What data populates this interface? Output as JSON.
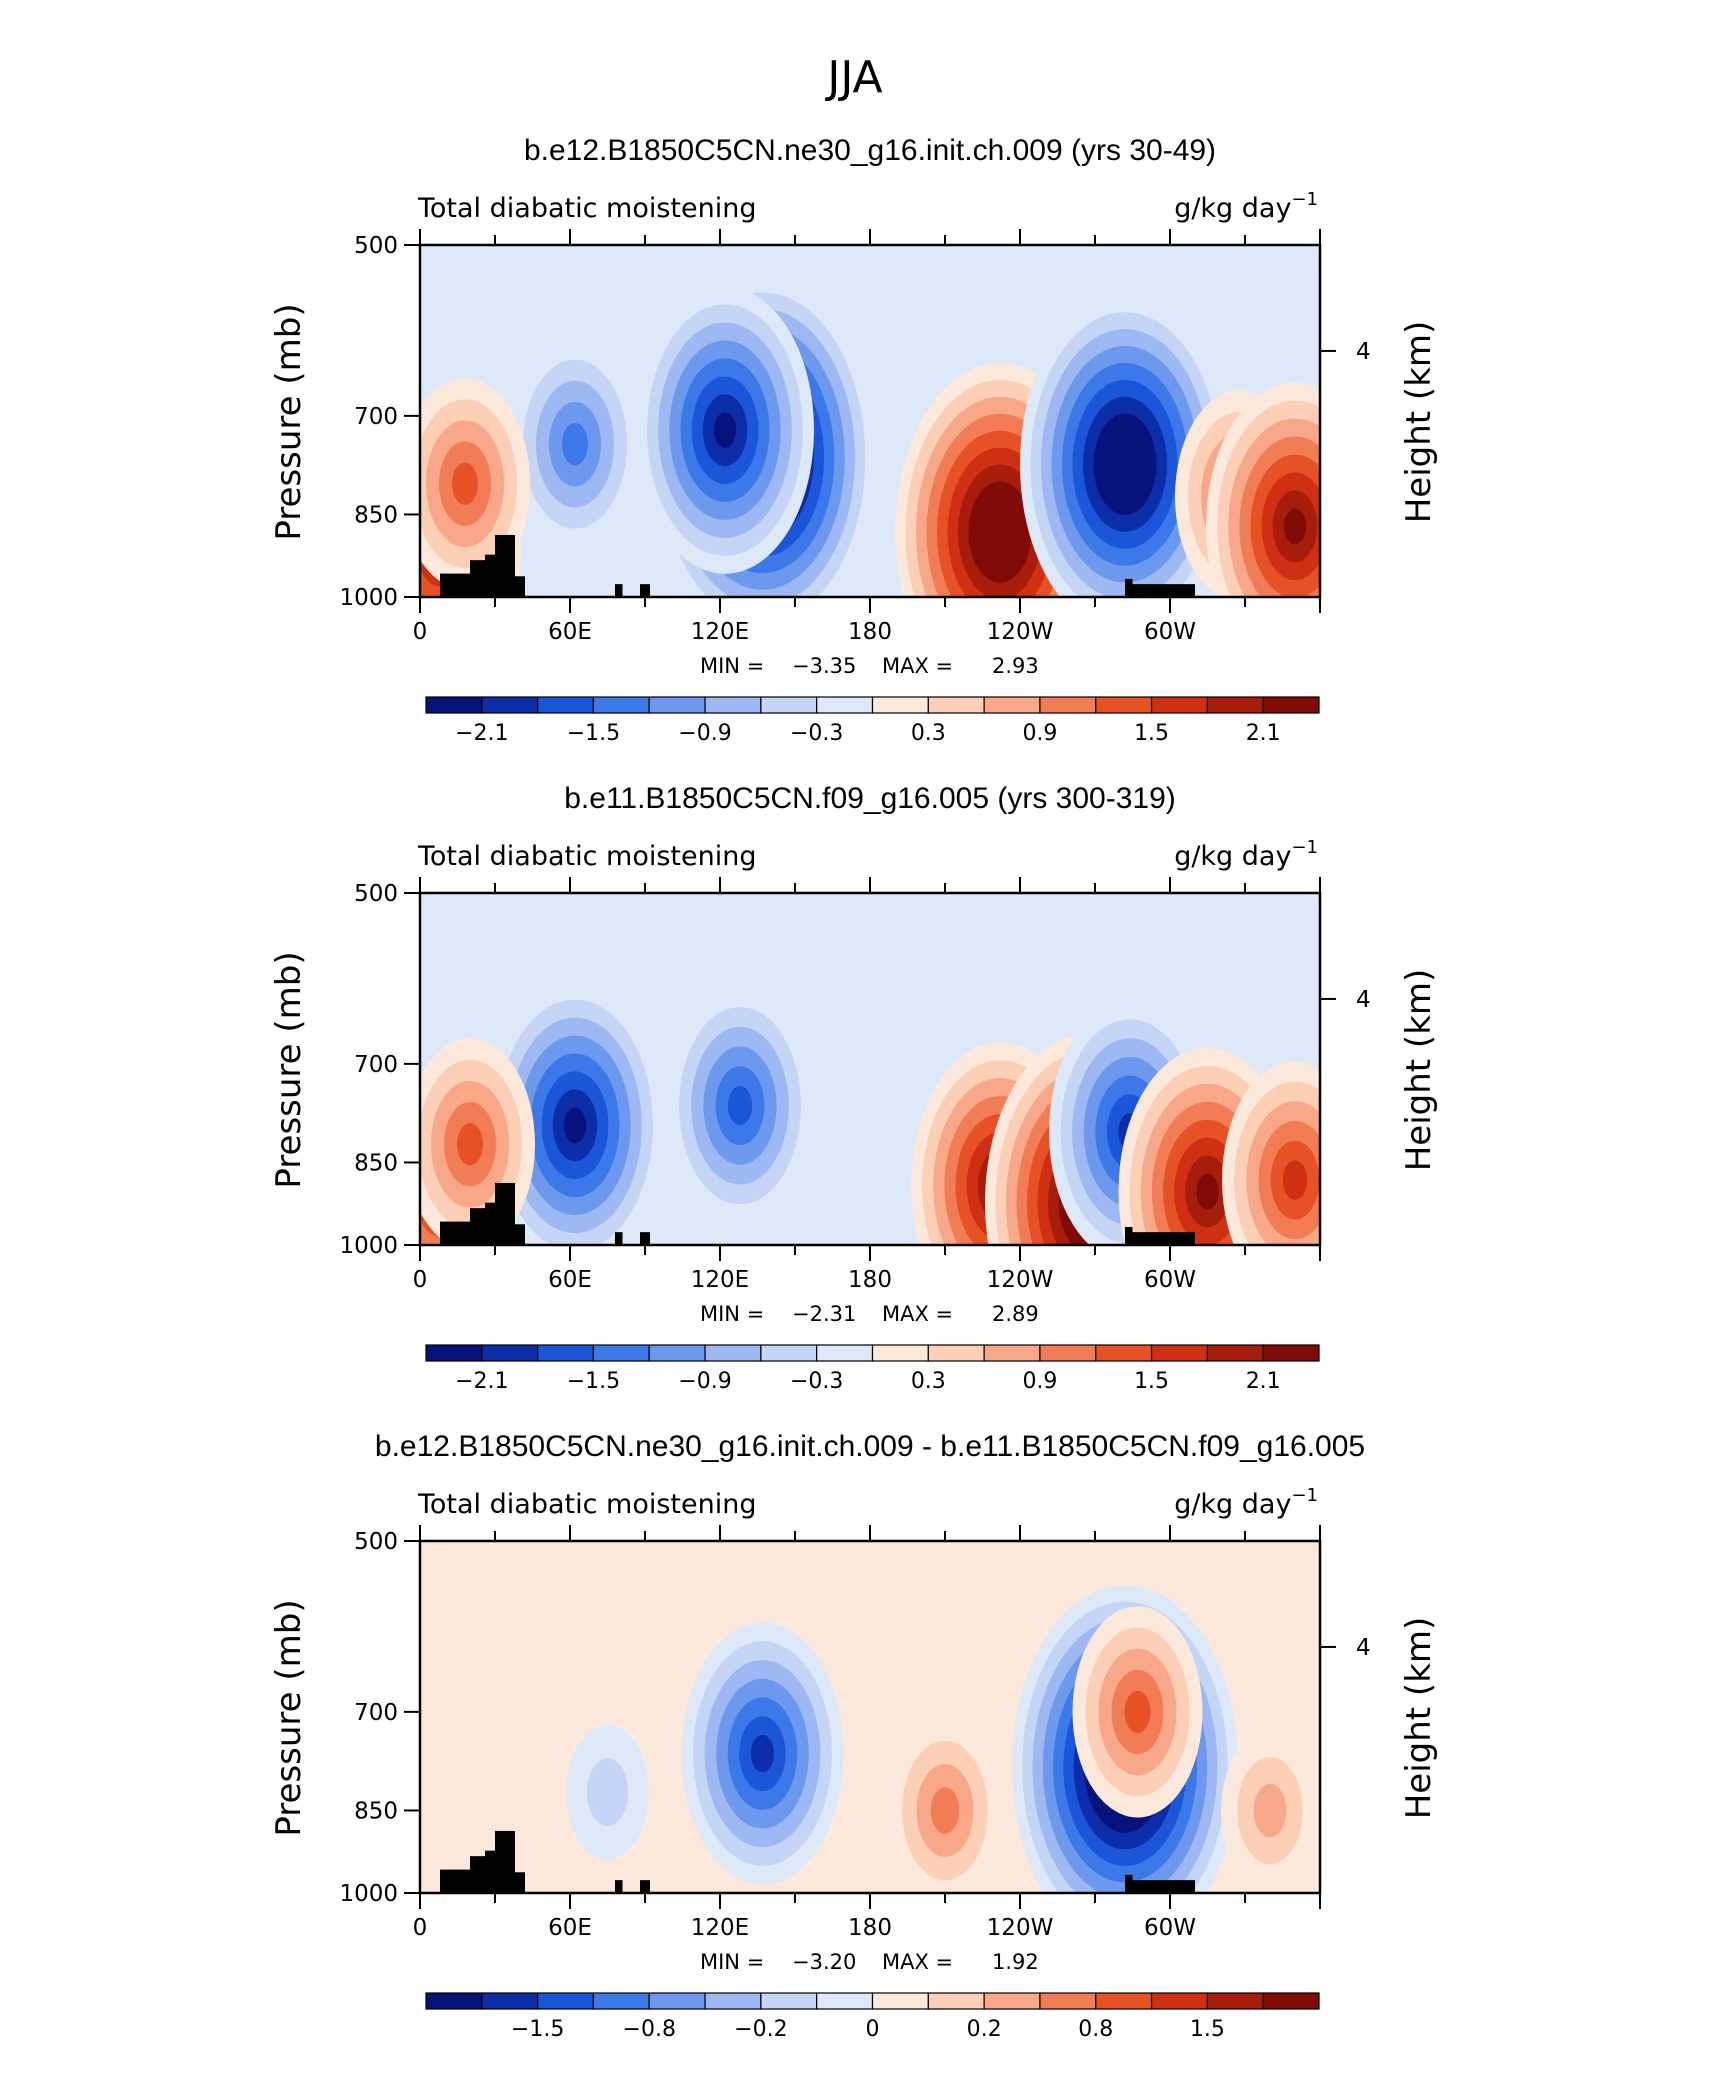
{
  "figure": {
    "title": "JJA"
  },
  "chart_data": [
    {
      "type": "heatmap",
      "title": "b.e12.B1850C5CN.ne30_g16.init.ch.009 (yrs 30-49)",
      "left_string": "Total diabatic moistening",
      "right_string_base": "g/kg day",
      "right_string_exp": "−1",
      "ylabel": "Pressure (mb)",
      "y2label": "Height (km)",
      "y_ticks": [
        "500",
        "700",
        "850",
        "1000"
      ],
      "y2_ticks": [
        "4"
      ],
      "x_ticks": [
        "0",
        "60E",
        "120E",
        "180",
        "120W",
        "60W"
      ],
      "ylim": [
        1000,
        500
      ],
      "xlim": [
        0,
        360
      ],
      "min_max": {
        "min_label": "MIN =",
        "min": "−3.35",
        "max_label": "MAX =",
        "max": "2.93"
      },
      "colorbar_labels": [
        "−2.1",
        "−1.5",
        "−0.9",
        "−0.3",
        "0.3",
        "0.9",
        "1.5",
        "2.1"
      ],
      "colorbar_label_slots": [
        1,
        3,
        5,
        7,
        9,
        11,
        13,
        15
      ],
      "features": [
        {
          "lon": 137,
          "p": 760,
          "value": -3.35
        },
        {
          "lon": 122,
          "p": 720,
          "value": -2.4
        },
        {
          "lon": 62,
          "p": 740,
          "value": -1.4
        },
        {
          "lon": 8,
          "p": 910,
          "value": 2.0
        },
        {
          "lon": 18,
          "p": 800,
          "value": 1.5
        },
        {
          "lon": 232,
          "p": 880,
          "value": 2.93
        },
        {
          "lon": 282,
          "p": 770,
          "value": -3.0
        },
        {
          "lon": 328,
          "p": 820,
          "value": 1.6
        },
        {
          "lon": 350,
          "p": 870,
          "value": 2.3
        }
      ]
    },
    {
      "type": "heatmap",
      "title": "b.e11.B1850C5CN.f09_g16.005 (yrs 300-319)",
      "left_string": "Total diabatic moistening",
      "right_string_base": "g/kg day",
      "right_string_exp": "−1",
      "ylabel": "Pressure (mb)",
      "y2label": "Height (km)",
      "y_ticks": [
        "500",
        "700",
        "850",
        "1000"
      ],
      "y2_ticks": [
        "4"
      ],
      "x_ticks": [
        "0",
        "60E",
        "120E",
        "180",
        "120W",
        "60W"
      ],
      "ylim": [
        1000,
        500
      ],
      "xlim": [
        0,
        360
      ],
      "min_max": {
        "min_label": "MIN =",
        "min": "−2.31",
        "max_label": "MAX =",
        "max": "2.89"
      },
      "colorbar_labels": [
        "−2.1",
        "−1.5",
        "−0.9",
        "−0.3",
        "0.3",
        "0.9",
        "1.5",
        "2.1"
      ],
      "colorbar_label_slots": [
        1,
        3,
        5,
        7,
        9,
        11,
        13,
        15
      ],
      "features": [
        {
          "lon": 62,
          "p": 790,
          "value": -2.31
        },
        {
          "lon": 128,
          "p": 760,
          "value": -1.8
        },
        {
          "lon": 8,
          "p": 910,
          "value": 1.8
        },
        {
          "lon": 20,
          "p": 820,
          "value": 1.4
        },
        {
          "lon": 232,
          "p": 890,
          "value": 2.3
        },
        {
          "lon": 268,
          "p": 920,
          "value": 2.89
        },
        {
          "lon": 284,
          "p": 800,
          "value": -2.1
        },
        {
          "lon": 315,
          "p": 900,
          "value": 2.4
        },
        {
          "lon": 350,
          "p": 880,
          "value": 1.8
        }
      ]
    },
    {
      "type": "heatmap",
      "title": "b.e12.B1850C5CN.ne30_g16.init.ch.009 - b.e11.B1850C5CN.f09_g16.005",
      "left_string": "Total diabatic moistening",
      "right_string_base": "g/kg day",
      "right_string_exp": "−1",
      "ylabel": "Pressure (mb)",
      "y2label": "Height (km)",
      "y_ticks": [
        "500",
        "700",
        "850",
        "1000"
      ],
      "y2_ticks": [
        "4"
      ],
      "x_ticks": [
        "0",
        "60E",
        "120E",
        "180",
        "120W",
        "60W"
      ],
      "ylim": [
        1000,
        500
      ],
      "xlim": [
        0,
        360
      ],
      "min_max": {
        "min_label": "MIN =",
        "min": "−3.20",
        "max_label": "MAX =",
        "max": "1.92"
      },
      "colorbar_labels": [
        "−1.5",
        "−0.8",
        "−0.2",
        "0",
        "0.2",
        "0.8",
        "1.5"
      ],
      "colorbar_label_slots": [
        2,
        4,
        6,
        8,
        10,
        12,
        14
      ],
      "features": [
        {
          "lon": 137,
          "p": 760,
          "value": -2.0
        },
        {
          "lon": 282,
          "p": 780,
          "value": -3.2
        },
        {
          "lon": 210,
          "p": 850,
          "value": 1.3
        },
        {
          "lon": 287,
          "p": 700,
          "value": 1.6
        },
        {
          "lon": 340,
          "p": 850,
          "value": 1.0
        },
        {
          "lon": 75,
          "p": 820,
          "value": -0.7
        }
      ]
    }
  ],
  "colors": {
    "colormap": [
      "#08127d",
      "#0b2ea8",
      "#1b56d8",
      "#3c78e8",
      "#6c98ee",
      "#9db8f2",
      "#c4d5f5",
      "#dde8f8",
      "#fde8dc",
      "#fccfb6",
      "#f8a888",
      "#f27c56",
      "#e75126",
      "#cf3014",
      "#a61d0c",
      "#800b06"
    ],
    "topography": "#000000"
  }
}
